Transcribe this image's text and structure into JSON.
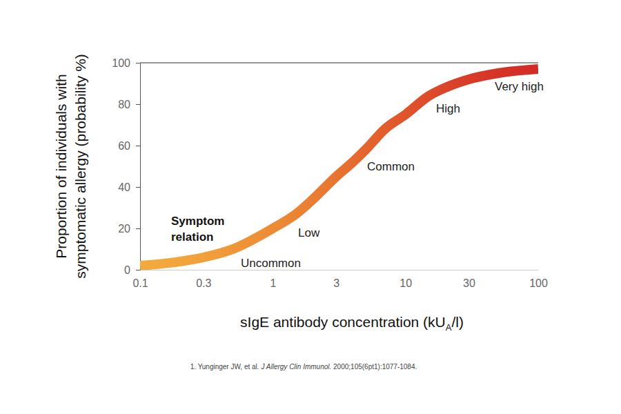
{
  "chart_data": {
    "type": "line",
    "log": "x",
    "grid": false,
    "x": [
      0.1,
      0.2,
      0.3,
      0.5,
      1,
      1.5,
      2,
      3,
      4,
      5,
      7,
      10,
      15,
      20,
      30,
      50,
      100
    ],
    "series": [
      {
        "values": [
          2,
          4,
          6,
          10,
          20,
          27,
          34,
          45,
          52,
          58,
          68,
          75,
          84,
          88,
          92,
          95,
          97
        ],
        "colors": [
          "#f3aa3d",
          "#f2a53b",
          "#f1a03a",
          "#ef9738",
          "#ec8b35",
          "#ea8433",
          "#e97e32",
          "#e77430",
          "#e56c2e",
          "#e4662d",
          "#e15d2c",
          "#df552b",
          "#dc4b2a",
          "#da4429",
          "#d83c28",
          "#d53327",
          "#d32b27"
        ]
      }
    ],
    "xlim": [
      0.1,
      100
    ],
    "xticks": [
      0.1,
      0.3,
      1,
      3,
      10,
      30,
      100
    ],
    "ylim": [
      0,
      100
    ],
    "yticks": [
      0,
      20,
      40,
      60,
      80,
      100
    ],
    "x_label": [
      "sIgE antibody concentration (kU",
      "A",
      "/l)"
    ],
    "y_label": [
      "Proportion of individuals with",
      "symptomatic allergy (probability %)"
    ],
    "annotation_title": [
      "Symptom",
      "relation"
    ],
    "annotations": [
      "Uncommon",
      "Low",
      "Common",
      "High",
      "Very high"
    ],
    "source": [
      "1. Yunginger JW, et al. ",
      "J Allergy Clin Immunol.",
      " 2000;105(6pt1):1077-1084."
    ]
  }
}
